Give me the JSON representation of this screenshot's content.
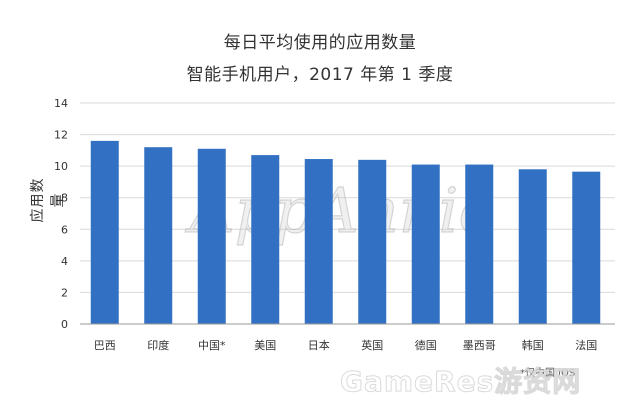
{
  "title": "每日平均使用的应用数量",
  "subtitle": "智能手机用户，2017 年第 1 季度",
  "footnote": "*仅中国 iOS",
  "watermark_center": "AppAnnie",
  "watermark_corner": "GameRes游资网",
  "colors": {
    "bar": "#3270c4",
    "grid": "#d9d9d9",
    "axis": "#999999",
    "text": "#333333"
  },
  "chart_data": {
    "type": "bar",
    "title": "每日平均使用的应用数量",
    "subtitle": "智能手机用户，2017 年第 1 季度",
    "xlabel": "",
    "ylabel": "应用数量",
    "categories": [
      "巴西",
      "印度",
      "中国*",
      "美国",
      "日本",
      "英国",
      "德国",
      "墨西哥",
      "韩国",
      "法国"
    ],
    "values": [
      11.6,
      11.2,
      11.1,
      10.7,
      10.45,
      10.4,
      10.1,
      10.1,
      9.8,
      9.65
    ],
    "ylim": [
      0,
      14
    ],
    "yticks": [
      0,
      2,
      4,
      6,
      8,
      10,
      12,
      14
    ],
    "grid": true,
    "legend": "none"
  }
}
